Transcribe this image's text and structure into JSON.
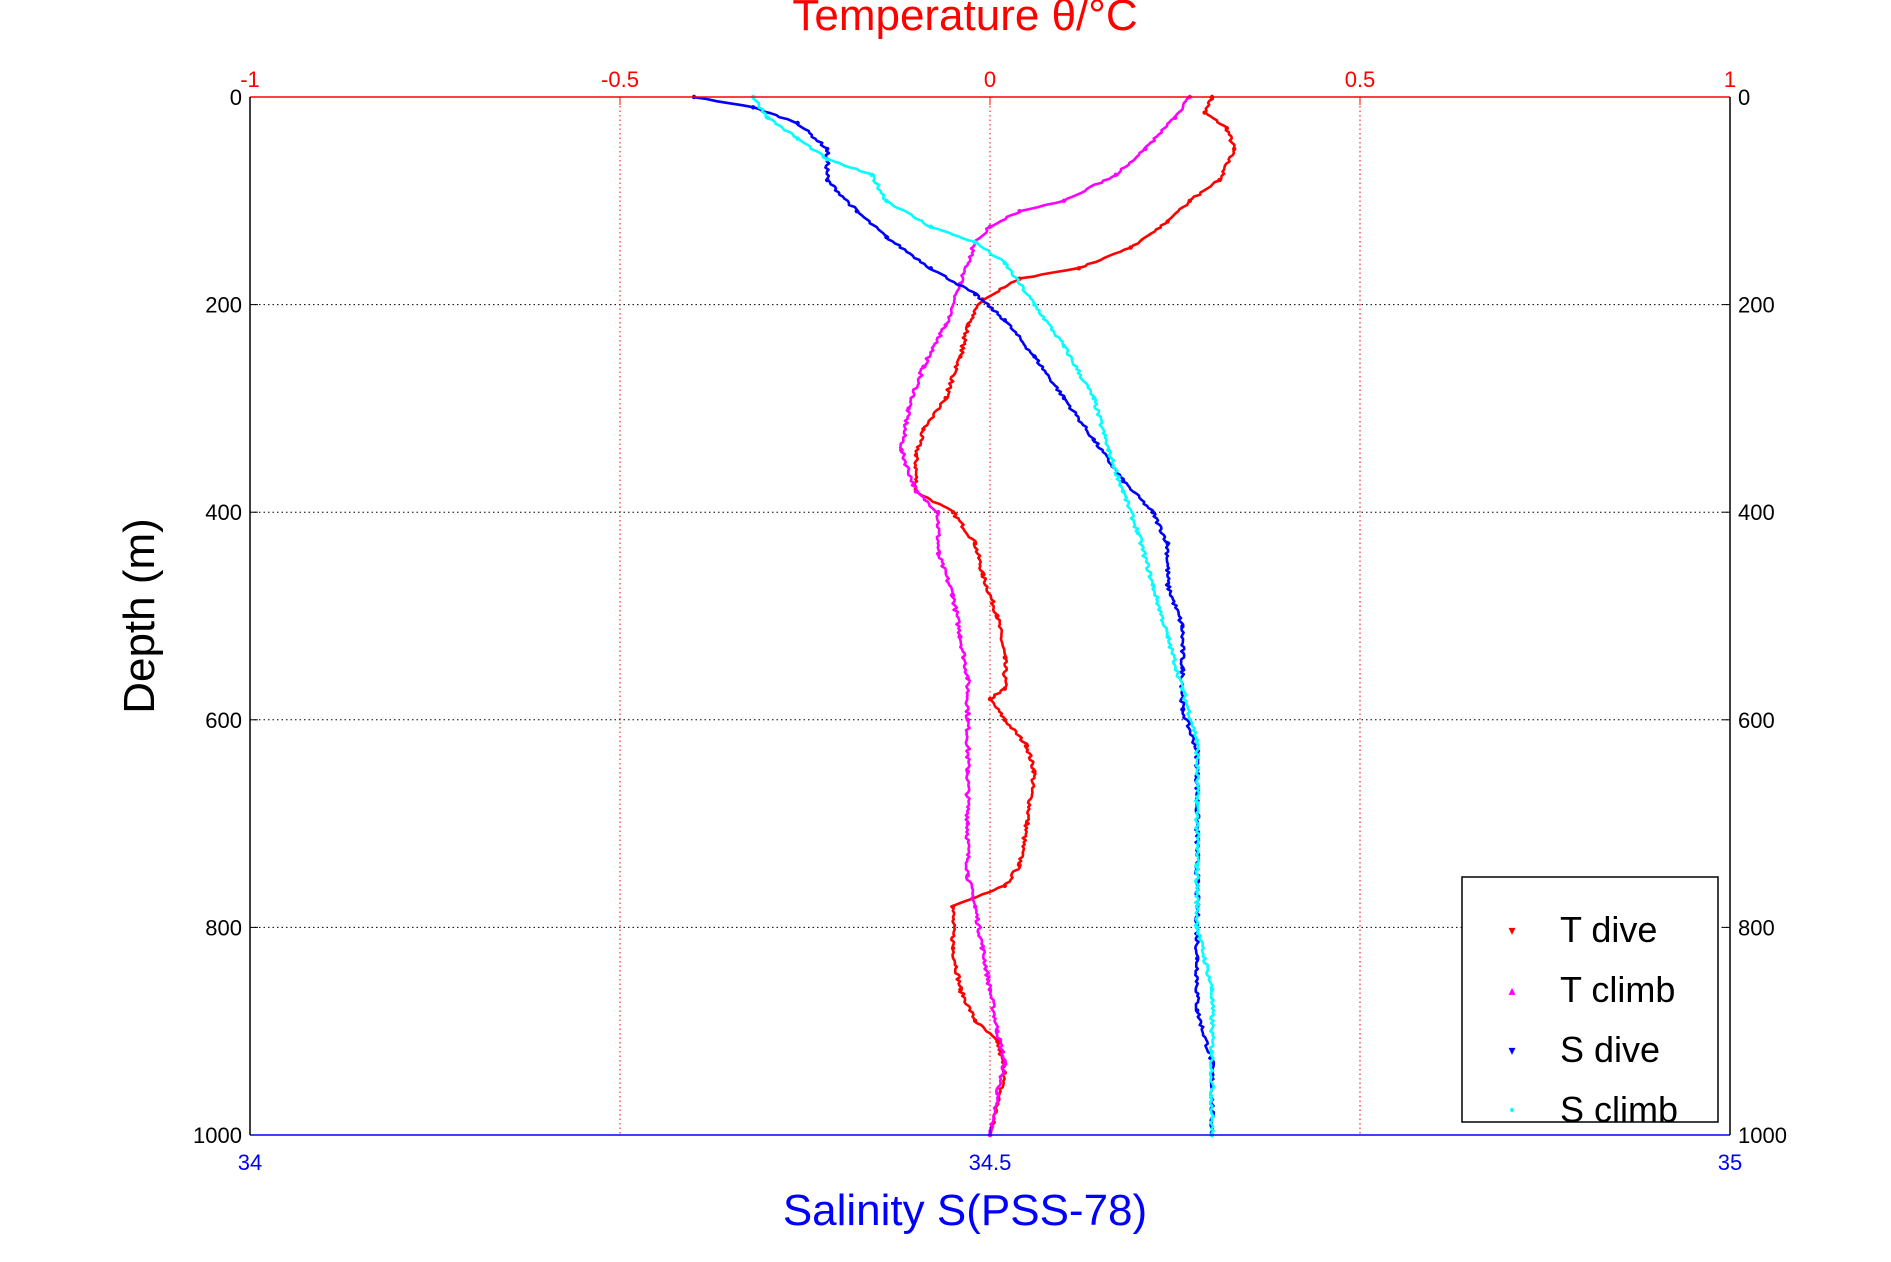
{
  "chart_data": {
    "type": "scatter",
    "title": "Temperature θ/°C",
    "xlabel": "Salinity S(PSS-78)",
    "ylabel": "Depth (m)",
    "temperature_axis": {
      "label": "Temperature θ/°C",
      "lim": [
        -1,
        1
      ],
      "ticks": [
        -1,
        -0.5,
        0,
        0.5,
        1
      ],
      "tick_labels": [
        "-1",
        "-0.5",
        "0",
        "0.5",
        "1"
      ],
      "color": "#ff0000",
      "position": "top",
      "grid": true
    },
    "salinity_axis": {
      "label": "Salinity S(PSS-78)",
      "lim": [
        34,
        35
      ],
      "ticks": [
        34,
        34.5,
        35
      ],
      "tick_labels": [
        "34",
        "34.5",
        "35"
      ],
      "color": "#0000ff",
      "position": "bottom"
    },
    "depth_axis": {
      "label": "Depth (m)",
      "lim": [
        0,
        1000
      ],
      "reversed": true,
      "ticks": [
        0,
        200,
        400,
        600,
        800,
        1000
      ],
      "tick_labels": [
        "0",
        "200",
        "400",
        "600",
        "800",
        "1000"
      ],
      "grid": true
    },
    "legend": {
      "placement": "bottom-right"
    },
    "series": [
      {
        "name": "T dive",
        "axis": "temperature",
        "color": "#ff0000",
        "marker": "▾",
        "points": [
          [
            0.3,
            0
          ],
          [
            0.29,
            15
          ],
          [
            0.32,
            30
          ],
          [
            0.33,
            50
          ],
          [
            0.31,
            80
          ],
          [
            0.27,
            100
          ],
          [
            0.24,
            120
          ],
          [
            0.19,
            145
          ],
          [
            0.12,
            165
          ],
          [
            0.04,
            175
          ],
          [
            -0.01,
            195
          ],
          [
            -0.03,
            220
          ],
          [
            -0.04,
            250
          ],
          [
            -0.06,
            290
          ],
          [
            -0.09,
            320
          ],
          [
            -0.1,
            345
          ],
          [
            -0.1,
            380
          ],
          [
            -0.05,
            400
          ],
          [
            -0.02,
            430
          ],
          [
            -0.01,
            460
          ],
          [
            0.01,
            500
          ],
          [
            0.02,
            540
          ],
          [
            0.02,
            570
          ],
          [
            0.0,
            580
          ],
          [
            0.02,
            600
          ],
          [
            0.05,
            625
          ],
          [
            0.06,
            650
          ],
          [
            0.05,
            700
          ],
          [
            0.04,
            740
          ],
          [
            0.02,
            760
          ],
          [
            -0.05,
            780
          ],
          [
            -0.05,
            820
          ],
          [
            -0.04,
            860
          ],
          [
            -0.02,
            890
          ],
          [
            0.01,
            910
          ],
          [
            0.02,
            940
          ],
          [
            0.01,
            970
          ],
          [
            0.0,
            1000
          ]
        ]
      },
      {
        "name": "T climb",
        "axis": "temperature",
        "color": "#ff00ff",
        "marker": "▴",
        "points": [
          [
            0.27,
            0
          ],
          [
            0.25,
            20
          ],
          [
            0.21,
            50
          ],
          [
            0.17,
            75
          ],
          [
            0.1,
            100
          ],
          [
            0.04,
            110
          ],
          [
            0.0,
            125
          ],
          [
            -0.02,
            140
          ],
          [
            -0.04,
            180
          ],
          [
            -0.06,
            220
          ],
          [
            -0.09,
            260
          ],
          [
            -0.11,
            300
          ],
          [
            -0.12,
            340
          ],
          [
            -0.1,
            380
          ],
          [
            -0.07,
            400
          ],
          [
            -0.07,
            440
          ],
          [
            -0.05,
            480
          ],
          [
            -0.04,
            520
          ],
          [
            -0.03,
            560
          ],
          [
            -0.03,
            600
          ],
          [
            -0.03,
            650
          ],
          [
            -0.03,
            700
          ],
          [
            -0.03,
            750
          ],
          [
            -0.02,
            780
          ],
          [
            -0.01,
            820
          ],
          [
            0.0,
            860
          ],
          [
            0.01,
            900
          ],
          [
            0.02,
            930
          ],
          [
            0.01,
            960
          ],
          [
            0.0,
            1000
          ]
        ]
      },
      {
        "name": "S dive",
        "axis": "salinity",
        "color": "#0000ff",
        "marker": "▾",
        "points": [
          [
            34.3,
            0
          ],
          [
            34.34,
            10
          ],
          [
            34.37,
            25
          ],
          [
            34.39,
            50
          ],
          [
            34.39,
            80
          ],
          [
            34.41,
            110
          ],
          [
            34.43,
            135
          ],
          [
            34.46,
            165
          ],
          [
            34.49,
            190
          ],
          [
            34.51,
            215
          ],
          [
            34.53,
            250
          ],
          [
            34.55,
            290
          ],
          [
            34.57,
            330
          ],
          [
            34.59,
            370
          ],
          [
            34.61,
            400
          ],
          [
            34.62,
            430
          ],
          [
            34.62,
            470
          ],
          [
            34.63,
            510
          ],
          [
            34.63,
            550
          ],
          [
            34.63,
            590
          ],
          [
            34.64,
            630
          ],
          [
            34.64,
            680
          ],
          [
            34.64,
            730
          ],
          [
            34.64,
            780
          ],
          [
            34.64,
            830
          ],
          [
            34.64,
            880
          ],
          [
            34.65,
            930
          ],
          [
            34.65,
            1000
          ]
        ]
      },
      {
        "name": "S climb",
        "axis": "salinity",
        "color": "#00ffff",
        "marker": "•",
        "points": [
          [
            34.34,
            0
          ],
          [
            34.35,
            20
          ],
          [
            34.37,
            40
          ],
          [
            34.39,
            60
          ],
          [
            34.42,
            75
          ],
          [
            34.43,
            100
          ],
          [
            34.46,
            125
          ],
          [
            34.49,
            140
          ],
          [
            34.51,
            160
          ],
          [
            34.53,
            200
          ],
          [
            34.55,
            240
          ],
          [
            34.57,
            290
          ],
          [
            34.58,
            340
          ],
          [
            34.59,
            380
          ],
          [
            34.6,
            420
          ],
          [
            34.61,
            470
          ],
          [
            34.62,
            520
          ],
          [
            34.63,
            570
          ],
          [
            34.64,
            620
          ],
          [
            34.64,
            680
          ],
          [
            34.64,
            740
          ],
          [
            34.64,
            800
          ],
          [
            34.65,
            860
          ],
          [
            34.65,
            920
          ],
          [
            34.65,
            1000
          ]
        ]
      }
    ]
  }
}
